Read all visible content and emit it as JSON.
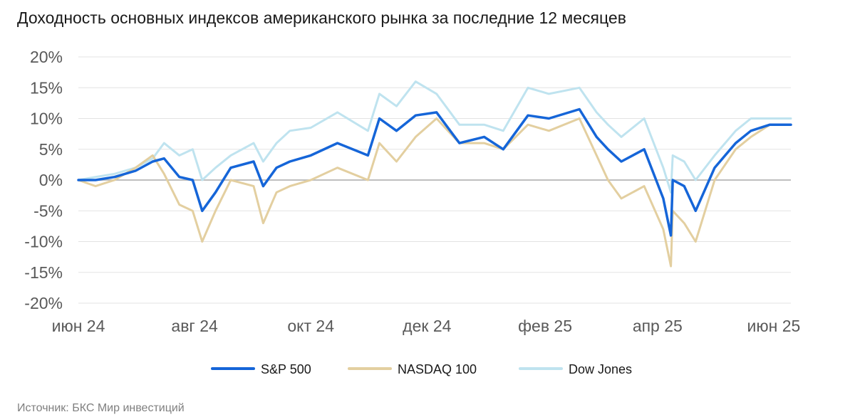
{
  "title": "Доходность основных индексов американского рынка за последние 12 месяцев",
  "source": "Источник: БКС Мир инвестиций",
  "chart_data": {
    "type": "line",
    "title": "Доходность основных индексов американского рынка за последние 12 месяцев",
    "xlabel": "",
    "ylabel": "",
    "x_ticks": [
      "июн 24",
      "авг 24",
      "окт 24",
      "дек 24",
      "фев 25",
      "апр 25",
      "июн 25"
    ],
    "x_tick_dates": [
      "2024-06-01",
      "2024-08-01",
      "2024-10-01",
      "2024-12-01",
      "2025-02-01",
      "2025-04-01",
      "2025-06-01"
    ],
    "y_ticks": [
      20,
      15,
      10,
      5,
      0,
      -5,
      -10,
      -15,
      -20
    ],
    "y_tick_labels": [
      "20%",
      "15%",
      "10%",
      "5%",
      "0%",
      "-5%",
      "-10%",
      "-15%",
      "-20%"
    ],
    "ylim": [
      -20,
      20
    ],
    "xlim": [
      "2024-06-01",
      "2025-06-10"
    ],
    "grid": true,
    "legend_position": "bottom",
    "series": [
      {
        "name": "S&P 500",
        "color": "#1565d8",
        "points": [
          [
            "2024-06-01",
            0
          ],
          [
            "2024-06-10",
            0
          ],
          [
            "2024-06-20",
            0.5
          ],
          [
            "2024-07-01",
            1.5
          ],
          [
            "2024-07-10",
            3
          ],
          [
            "2024-07-16",
            3.5
          ],
          [
            "2024-07-24",
            0.5
          ],
          [
            "2024-07-31",
            0
          ],
          [
            "2024-08-05",
            -5
          ],
          [
            "2024-08-12",
            -2
          ],
          [
            "2024-08-20",
            2
          ],
          [
            "2024-09-01",
            3
          ],
          [
            "2024-09-06",
            -1
          ],
          [
            "2024-09-13",
            2
          ],
          [
            "2024-09-20",
            3
          ],
          [
            "2024-10-01",
            4
          ],
          [
            "2024-10-15",
            6
          ],
          [
            "2024-10-31",
            4
          ],
          [
            "2024-11-06",
            10
          ],
          [
            "2024-11-15",
            8
          ],
          [
            "2024-11-25",
            10.5
          ],
          [
            "2024-12-06",
            11
          ],
          [
            "2024-12-18",
            6
          ],
          [
            "2024-12-31",
            7
          ],
          [
            "2025-01-10",
            5
          ],
          [
            "2025-01-23",
            10.5
          ],
          [
            "2025-02-03",
            10
          ],
          [
            "2025-02-19",
            11.5
          ],
          [
            "2025-02-28",
            7
          ],
          [
            "2025-03-06",
            5
          ],
          [
            "2025-03-13",
            3
          ],
          [
            "2025-03-25",
            5
          ],
          [
            "2025-04-04",
            -3
          ],
          [
            "2025-04-08",
            -9
          ],
          [
            "2025-04-09",
            0
          ],
          [
            "2025-04-15",
            -1
          ],
          [
            "2025-04-21",
            -5
          ],
          [
            "2025-05-01",
            2
          ],
          [
            "2025-05-12",
            6
          ],
          [
            "2025-05-20",
            8
          ],
          [
            "2025-05-30",
            9
          ],
          [
            "2025-06-10",
            9
          ]
        ]
      },
      {
        "name": "NASDAQ 100",
        "color": "#e3cfa0",
        "points": [
          [
            "2024-06-01",
            0
          ],
          [
            "2024-06-10",
            -1
          ],
          [
            "2024-06-20",
            0
          ],
          [
            "2024-07-01",
            2
          ],
          [
            "2024-07-10",
            4
          ],
          [
            "2024-07-16",
            1
          ],
          [
            "2024-07-24",
            -4
          ],
          [
            "2024-07-31",
            -5
          ],
          [
            "2024-08-05",
            -10
          ],
          [
            "2024-08-12",
            -5
          ],
          [
            "2024-08-20",
            0
          ],
          [
            "2024-09-01",
            -1
          ],
          [
            "2024-09-06",
            -7
          ],
          [
            "2024-09-13",
            -2
          ],
          [
            "2024-09-20",
            -1
          ],
          [
            "2024-10-01",
            0
          ],
          [
            "2024-10-15",
            2
          ],
          [
            "2024-10-31",
            0
          ],
          [
            "2024-11-06",
            6
          ],
          [
            "2024-11-15",
            3
          ],
          [
            "2024-11-25",
            7
          ],
          [
            "2024-12-06",
            10
          ],
          [
            "2024-12-18",
            6
          ],
          [
            "2024-12-31",
            6
          ],
          [
            "2025-01-10",
            5
          ],
          [
            "2025-01-23",
            9
          ],
          [
            "2025-02-03",
            8
          ],
          [
            "2025-02-19",
            10
          ],
          [
            "2025-02-28",
            4
          ],
          [
            "2025-03-06",
            0
          ],
          [
            "2025-03-13",
            -3
          ],
          [
            "2025-03-25",
            -1
          ],
          [
            "2025-04-04",
            -8
          ],
          [
            "2025-04-08",
            -14
          ],
          [
            "2025-04-09",
            -5
          ],
          [
            "2025-04-15",
            -7
          ],
          [
            "2025-04-21",
            -10
          ],
          [
            "2025-05-01",
            0
          ],
          [
            "2025-05-12",
            5
          ],
          [
            "2025-05-20",
            7
          ],
          [
            "2025-05-30",
            9
          ],
          [
            "2025-06-10",
            9
          ]
        ]
      },
      {
        "name": "Dow Jones",
        "color": "#bfe3ef",
        "points": [
          [
            "2024-06-01",
            0
          ],
          [
            "2024-06-10",
            0.5
          ],
          [
            "2024-06-20",
            1
          ],
          [
            "2024-07-01",
            2
          ],
          [
            "2024-07-10",
            3.5
          ],
          [
            "2024-07-16",
            6
          ],
          [
            "2024-07-24",
            4
          ],
          [
            "2024-07-31",
            5
          ],
          [
            "2024-08-05",
            0
          ],
          [
            "2024-08-12",
            2
          ],
          [
            "2024-08-20",
            4
          ],
          [
            "2024-09-01",
            6
          ],
          [
            "2024-09-06",
            3
          ],
          [
            "2024-09-13",
            6
          ],
          [
            "2024-09-20",
            8
          ],
          [
            "2024-10-01",
            8.5
          ],
          [
            "2024-10-15",
            11
          ],
          [
            "2024-10-31",
            8
          ],
          [
            "2024-11-06",
            14
          ],
          [
            "2024-11-15",
            12
          ],
          [
            "2024-11-25",
            16
          ],
          [
            "2024-12-06",
            14
          ],
          [
            "2024-12-18",
            9
          ],
          [
            "2024-12-31",
            9
          ],
          [
            "2025-01-10",
            8
          ],
          [
            "2025-01-23",
            15
          ],
          [
            "2025-02-03",
            14
          ],
          [
            "2025-02-19",
            15
          ],
          [
            "2025-02-28",
            11
          ],
          [
            "2025-03-06",
            9
          ],
          [
            "2025-03-13",
            7
          ],
          [
            "2025-03-25",
            10
          ],
          [
            "2025-04-04",
            2
          ],
          [
            "2025-04-08",
            -2
          ],
          [
            "2025-04-09",
            4
          ],
          [
            "2025-04-15",
            3
          ],
          [
            "2025-04-21",
            0
          ],
          [
            "2025-05-01",
            4
          ],
          [
            "2025-05-12",
            8
          ],
          [
            "2025-05-20",
            10
          ],
          [
            "2025-05-30",
            10
          ],
          [
            "2025-06-10",
            10
          ]
        ]
      }
    ]
  }
}
